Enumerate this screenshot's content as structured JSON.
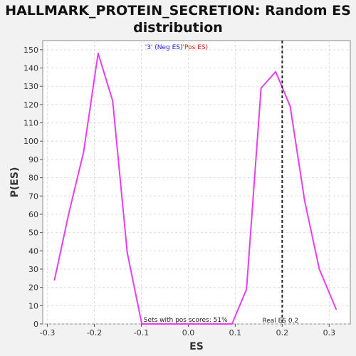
{
  "chart_data": {
    "type": "line",
    "title_line1": "HALLMARK_PROTEIN_SECRETION: Random ES",
    "title_line2": "distribution",
    "xlabel": "ES",
    "ylabel": "P(ES)",
    "xlim": [
      -0.31,
      0.345
    ],
    "ylim": [
      0,
      155
    ],
    "xticks": [
      -0.3,
      -0.2,
      -0.1,
      0.0,
      0.1,
      0.2,
      0.3
    ],
    "xtick_labels": [
      "-0.3",
      "-0.2",
      "-0.1",
      "0.0",
      "0.1",
      "0.2",
      "0.3"
    ],
    "yticks": [
      0,
      10,
      20,
      30,
      40,
      50,
      60,
      70,
      80,
      90,
      100,
      110,
      120,
      130,
      140,
      150
    ],
    "grid": true,
    "series": [
      {
        "color": "#e83ef0",
        "x": [
          -0.285,
          -0.254,
          -0.223,
          -0.192,
          -0.161,
          -0.13,
          -0.099,
          0.093,
          0.124,
          0.155,
          0.186,
          0.217,
          0.248,
          0.279,
          0.315
        ],
        "y": [
          24,
          61,
          94,
          148,
          122,
          39,
          0,
          0,
          19,
          129,
          138,
          119,
          67,
          30,
          8
        ]
      }
    ],
    "legend": {
      "neg_label": "'3' (Neg ES)",
      "pos_label": "'Pos ES)",
      "neg_color": "#1a1ae8",
      "pos_color": "#e81a1a",
      "placement": "top-center"
    },
    "real_es": {
      "value": 0.2,
      "label": "Real ES 0.2"
    },
    "annotation": "Sets with pos scores: 51%"
  }
}
